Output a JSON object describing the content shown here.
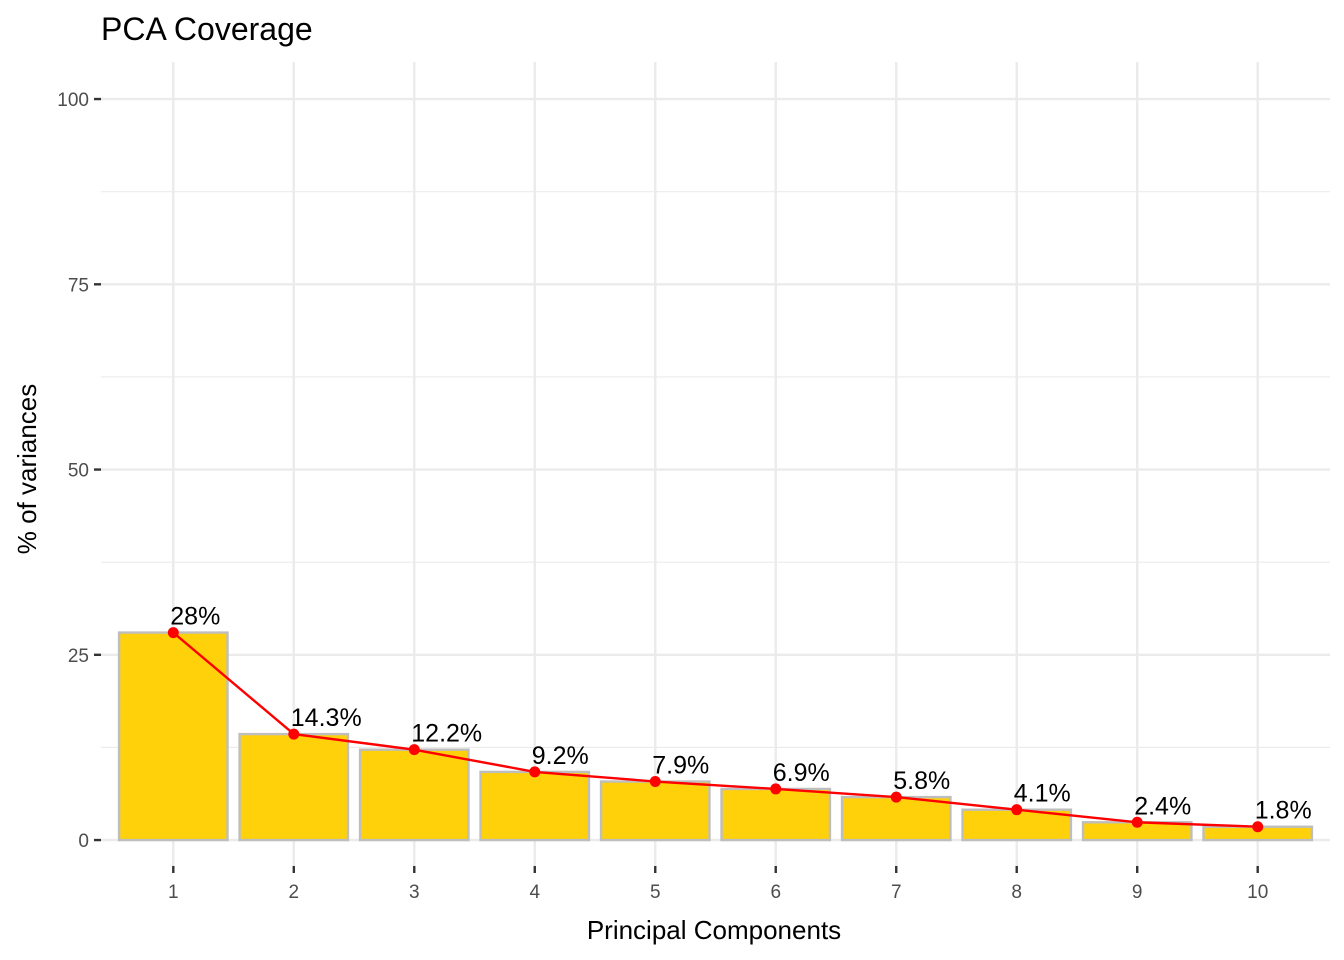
{
  "chart_data": {
    "type": "bar",
    "title": "PCA Coverage",
    "xlabel": "Principal Components",
    "ylabel": "% of variances",
    "categories": [
      "1",
      "2",
      "3",
      "4",
      "5",
      "6",
      "7",
      "8",
      "9",
      "10"
    ],
    "values": [
      28.0,
      14.3,
      12.2,
      9.2,
      7.9,
      6.9,
      5.8,
      4.1,
      2.4,
      1.8
    ],
    "data_labels": [
      "28%",
      "14.3%",
      "12.2%",
      "9.2%",
      "7.9%",
      "6.9%",
      "5.8%",
      "4.1%",
      "2.4%",
      "1.8%"
    ],
    "ylim": [
      -3.5,
      105
    ],
    "yticks": [
      0,
      25,
      50,
      75,
      100
    ],
    "ytick_labels": [
      "0",
      "25",
      "50",
      "75",
      "100"
    ],
    "grid": true,
    "legend": "none",
    "overlay": "line with points through bar tops",
    "colors": {
      "bar_fill": "#FFD10A",
      "bar_border": "#BEBEBE",
      "line": "#FF0000",
      "points": "#FF0000",
      "grid": "#EBEBEB"
    }
  }
}
